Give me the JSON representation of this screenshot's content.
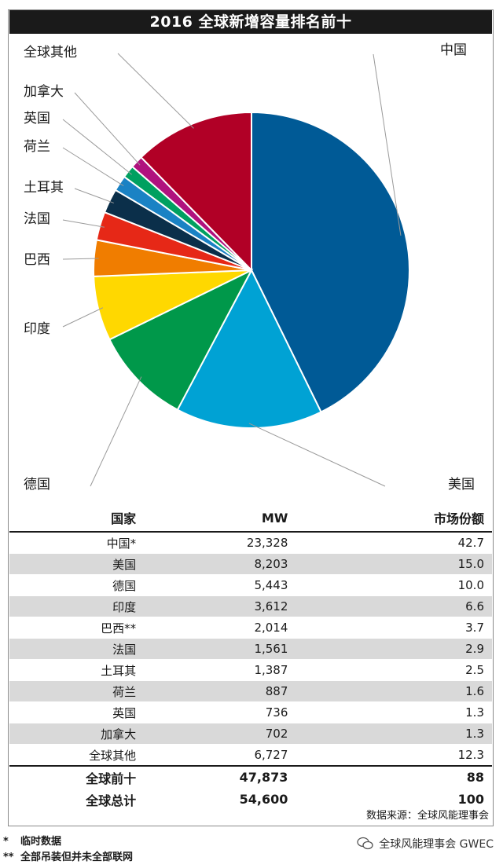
{
  "title": "2016 全球新增容量排名前十",
  "chart_data": {
    "type": "pie",
    "title": "2016 全球新增容量排名前十",
    "slices": [
      {
        "label": "中国",
        "value": 42.7,
        "color": "#005a96"
      },
      {
        "label": "美国",
        "value": 15.0,
        "color": "#00a2d4"
      },
      {
        "label": "德国",
        "value": 10.0,
        "color": "#00984a"
      },
      {
        "label": "印度",
        "value": 6.6,
        "color": "#ffd800"
      },
      {
        "label": "巴西",
        "value": 3.7,
        "color": "#f07d00"
      },
      {
        "label": "法国",
        "value": 2.9,
        "color": "#e62817"
      },
      {
        "label": "土耳其",
        "value": 2.5,
        "color": "#0b2f4a"
      },
      {
        "label": "荷兰",
        "value": 1.6,
        "color": "#1a82c4"
      },
      {
        "label": "英国",
        "value": 1.3,
        "color": "#00a060"
      },
      {
        "label": "加拿大",
        "value": 1.3,
        "color": "#b0127e"
      },
      {
        "label": "全球其他",
        "value": 12.3,
        "color": "#b10026"
      }
    ]
  },
  "table": {
    "headers": [
      "国家",
      "MW",
      "市场份额"
    ],
    "rows": [
      [
        "中国*",
        "23,328",
        "42.7"
      ],
      [
        "美国",
        "8,203",
        "15.0"
      ],
      [
        "德国",
        "5,443",
        "10.0"
      ],
      [
        "印度",
        "3,612",
        "6.6"
      ],
      [
        "巴西**",
        "2,014",
        "3.7"
      ],
      [
        "法国",
        "1,561",
        "2.9"
      ],
      [
        "土耳其",
        "1,387",
        "2.5"
      ],
      [
        "荷兰",
        "887",
        "1.6"
      ],
      [
        "英国",
        "736",
        "1.3"
      ],
      [
        "加拿大",
        "702",
        "1.3"
      ],
      [
        "全球其他",
        "6,727",
        "12.3"
      ]
    ],
    "summary": [
      [
        "全球前十",
        "47,873",
        "88"
      ],
      [
        "全球总计",
        "54,600",
        "100"
      ]
    ]
  },
  "source": "数据来源：全球风能理事会",
  "notes": [
    {
      "mark": "*",
      "text": "临时数据"
    },
    {
      "mark": "**",
      "text": "全部吊装但并未全部联网"
    }
  ],
  "watermark": "全球风能理事会 GWEC"
}
